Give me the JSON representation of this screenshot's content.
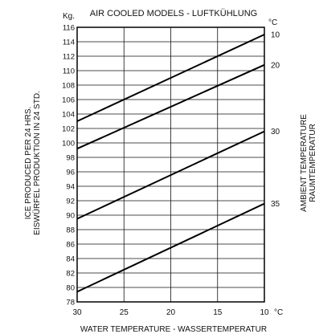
{
  "chart_data": {
    "type": "line",
    "title": "AIR COOLED MODELS - LUFTKÜHLUNG",
    "xlabel": "WATER TEMPERATURE - WASSERTEMPERATUR",
    "ylabel_line1": "ICE PRODUCED PER 24 HRS.",
    "ylabel_line2": "EISWÜRFEL PRODUKTION IN 24 STD.",
    "right_label_line1": "AMBIENT TEMPERATURE",
    "right_label_line2": "RAUMTEMPERATUR",
    "y_unit": "Kg.",
    "x_unit": "°C",
    "series_unit": "°C",
    "x_ticks": [
      30,
      25,
      20,
      15,
      10
    ],
    "y_ticks": [
      116,
      114,
      112,
      110,
      108,
      106,
      104,
      102,
      100,
      98,
      96,
      94,
      92,
      90,
      88,
      86,
      84,
      82,
      80,
      78
    ],
    "xlim": [
      30,
      10
    ],
    "ylim": [
      78,
      116
    ],
    "grid": true,
    "series": [
      {
        "name": "10",
        "x": [
          30,
          10
        ],
        "y": [
          103.0,
          115.0
        ]
      },
      {
        "name": "20",
        "x": [
          30,
          10
        ],
        "y": [
          99.2,
          110.8
        ]
      },
      {
        "name": "30",
        "x": [
          30,
          10
        ],
        "y": [
          89.5,
          101.6
        ]
      },
      {
        "name": "35",
        "x": [
          30,
          10
        ],
        "y": [
          79.4,
          91.6
        ]
      }
    ]
  }
}
